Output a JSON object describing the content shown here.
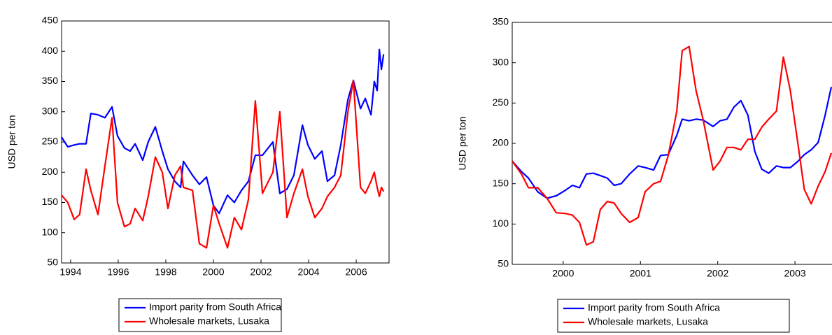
{
  "chart_data": [
    {
      "type": "line",
      "y_label": "USD per ton",
      "x": [
        1993.62,
        1993.88,
        1994.15,
        1994.38,
        1994.65,
        1994.85,
        1995.15,
        1995.44,
        1995.74,
        1995.97,
        1996.26,
        1996.5,
        1996.71,
        1997.03,
        1997.26,
        1997.56,
        1997.85,
        1998.09,
        1998.38,
        1998.62,
        1998.74,
        1999.12,
        1999.41,
        1999.71,
        2000,
        2000.24,
        2000.59,
        2000.88,
        2001.18,
        2001.47,
        2001.76,
        2002.06,
        2002.5,
        2002.79,
        2003.09,
        2003.38,
        2003.74,
        2003.97,
        2004.26,
        2004.56,
        2004.79,
        2005.09,
        2005.35,
        2005.65,
        2005.88,
        2006.18,
        2006.38,
        2006.62,
        2006.76,
        2006.88,
        2006.97,
        2007.06,
        2007.15
      ],
      "series": [
        {
          "name": "Import parity from South Africa",
          "color": "#0000ff",
          "values": [
            258,
            242,
            245,
            247,
            247,
            297,
            295,
            290,
            308,
            260,
            240,
            235,
            247,
            220,
            250,
            275,
            235,
            205,
            185,
            175,
            218,
            195,
            180,
            192,
            145,
            132,
            162,
            150,
            170,
            185,
            228,
            228,
            250,
            165,
            172,
            195,
            278,
            245,
            222,
            235,
            185,
            195,
            245,
            320,
            352,
            305,
            322,
            295,
            350,
            335,
            403,
            370,
            395
          ]
        },
        {
          "name": "Wholesale markets, Lusaka",
          "color": "#ff0000",
          "values": [
            162,
            150,
            122,
            130,
            205,
            170,
            130,
            210,
            290,
            150,
            110,
            115,
            140,
            120,
            160,
            225,
            200,
            140,
            195,
            210,
            175,
            170,
            82,
            75,
            145,
            115,
            75,
            125,
            105,
            155,
            318,
            165,
            200,
            300,
            125,
            165,
            205,
            160,
            125,
            140,
            160,
            175,
            195,
            300,
            352,
            175,
            165,
            185,
            200,
            175,
            160,
            175,
            168
          ]
        }
      ],
      "xlim": [
        1993.62,
        2007.38
      ],
      "xticks": [
        1994,
        1996,
        1998,
        2000,
        2002,
        2004,
        2006
      ],
      "ylim": [
        50,
        450
      ],
      "yticks": [
        50,
        100,
        150,
        200,
        250,
        300,
        350,
        400,
        450
      ]
    },
    {
      "type": "line",
      "y_label": "USD per ton",
      "x": [
        1999.84,
        1999.96,
        2000.05,
        2000.17,
        2000.29,
        2000.41,
        2000.53,
        2000.62,
        2000.71,
        2000.8,
        2000.89,
        2000.98,
        2001.07,
        2001.16,
        2001.25,
        2001.36,
        2001.47,
        2001.56,
        2001.67,
        2001.76,
        2001.86,
        2001.97,
        2002.04,
        2002.13,
        2002.22,
        2002.31,
        2002.44,
        2002.53,
        2002.62,
        2002.71,
        2002.8,
        2002.89,
        2002.98,
        2003.07,
        2003.16,
        2003.26,
        2003.35,
        2003.44,
        2003.53,
        2003.62,
        2003.71,
        2003.8,
        2003.89,
        2003.97
      ],
      "series": [
        {
          "name": "Import parity from South Africa",
          "color": "#0000ff",
          "values": [
            178,
            165,
            157,
            140,
            132,
            135,
            142,
            148,
            145,
            162,
            163,
            160,
            157,
            148,
            150,
            162,
            172,
            170,
            167,
            185,
            186,
            210,
            230,
            228,
            230,
            229,
            221,
            228,
            230,
            245,
            253,
            235,
            190,
            168,
            163,
            172,
            170,
            170,
            177,
            186,
            192,
            201,
            235,
            270
          ]
        },
        {
          "name": "Wholesale markets, Lusaka",
          "color": "#ff0000",
          "values": [
            178,
            162,
            145,
            145,
            132,
            114,
            113,
            111,
            102,
            74,
            78,
            118,
            128,
            126,
            113,
            102,
            108,
            140,
            150,
            153,
            185,
            240,
            315,
            320,
            265,
            230,
            167,
            178,
            195,
            195,
            192,
            205,
            205,
            220,
            230,
            240,
            307,
            265,
            205,
            143,
            125,
            147,
            165,
            188
          ]
        }
      ],
      "xlim": [
        1999.84,
        2003.97
      ],
      "xticks": [
        {
          "value": 2000.5,
          "label": "2000"
        },
        {
          "value": 2001.5,
          "label": "2001"
        },
        {
          "value": 2002.5,
          "label": "2002"
        },
        {
          "value": 2003.5,
          "label": "2003"
        }
      ],
      "ylim": [
        50,
        350
      ],
      "yticks": [
        50,
        100,
        150,
        200,
        250,
        300,
        350
      ]
    }
  ]
}
